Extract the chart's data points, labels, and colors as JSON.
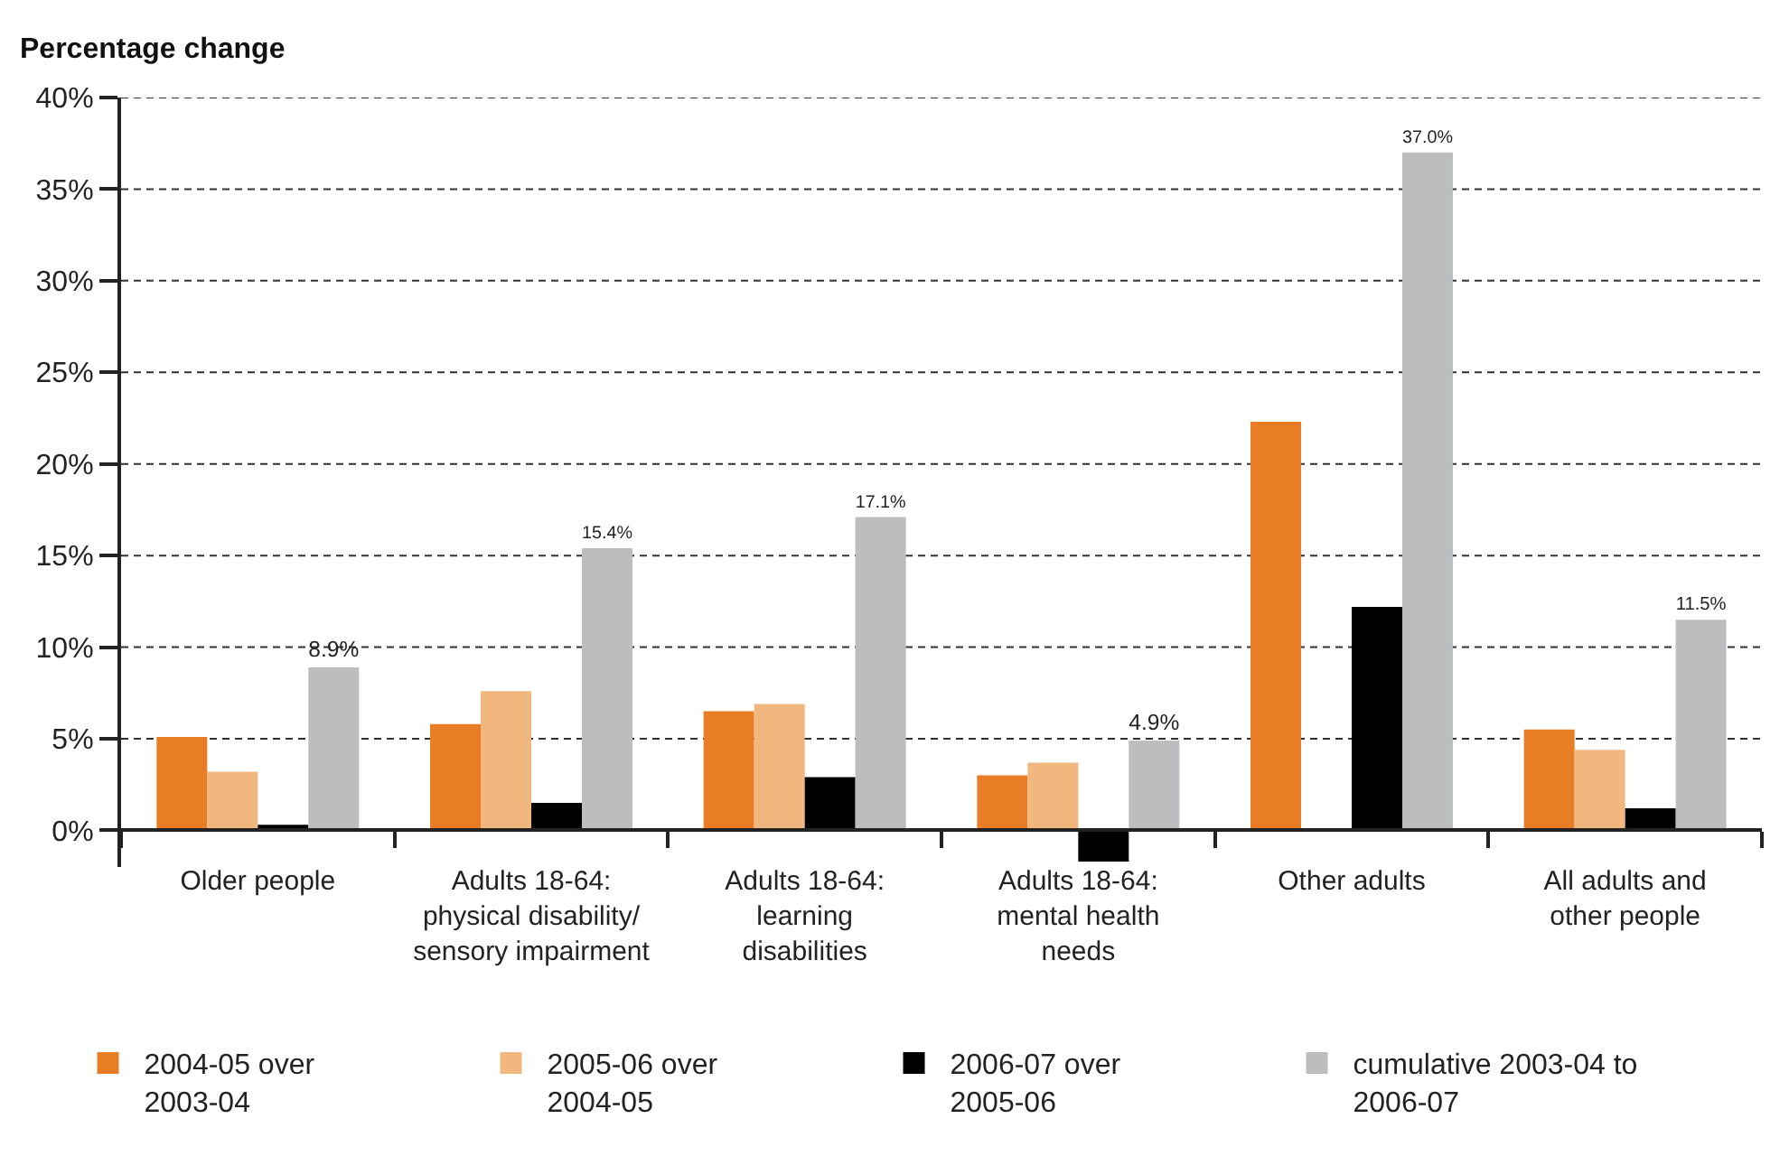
{
  "chart_data": {
    "type": "bar",
    "ylabel": "Percentage change",
    "categories": [
      "Older people",
      "Adults 18-64:\nphysical disability/\nsensory impairment",
      "Adults 18-64:\nlearning\ndisabilities",
      "Adults 18-64:\nmental health\nneeds",
      "Other adults",
      "All adults and\nother people"
    ],
    "series": [
      {
        "name": "2004-05 over\n2003-04",
        "color": "#e87d26",
        "values": [
          5.1,
          5.8,
          6.5,
          3.0,
          22.3,
          5.5
        ]
      },
      {
        "name": "2005-06 over\n2004-05",
        "color": "#f2b67f",
        "values": [
          3.2,
          7.6,
          6.9,
          3.7,
          null,
          4.4
        ]
      },
      {
        "name": "2006-07 over\n2005-06",
        "color": "#000000",
        "values": [
          0.3,
          1.5,
          2.9,
          -1.7,
          12.2,
          1.2
        ]
      },
      {
        "name": "cumulative 2003-04 to\n2006-07",
        "color": "#bcbdbf",
        "values": [
          8.9,
          15.4,
          17.1,
          4.9,
          37.0,
          11.5
        ],
        "value_labels": [
          "8.9%",
          "15.4%",
          "17.1%",
          "4.9%",
          "37.0%",
          "11.5%"
        ]
      }
    ],
    "ylim": [
      -2,
      40
    ],
    "yticks": [
      {
        "value": 0,
        "label": "0%"
      },
      {
        "value": 5,
        "label": "5%"
      },
      {
        "value": 10,
        "label": "10%"
      },
      {
        "value": 15,
        "label": "15%"
      },
      {
        "value": 20,
        "label": "20%"
      },
      {
        "value": 25,
        "label": "25%"
      },
      {
        "value": 30,
        "label": "30%"
      },
      {
        "value": 35,
        "label": "35%"
      },
      {
        "value": 40,
        "label": "40%"
      }
    ],
    "grid": "y",
    "legend": "bottom"
  }
}
